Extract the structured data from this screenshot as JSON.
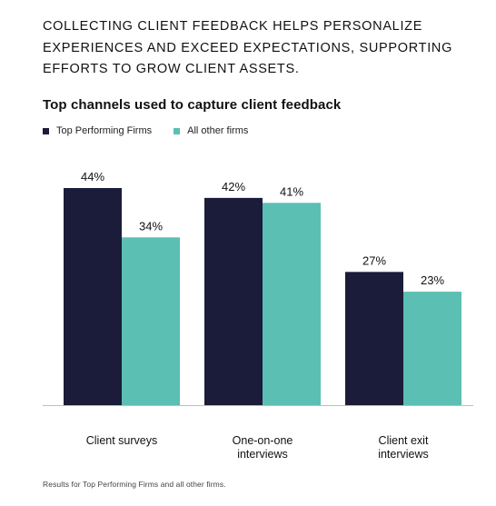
{
  "intro_text": "COLLECTING CLIENT FEEDBACK HELPS PERSONALIZE EXPERIENCES AND EXCEED EXPECTATIONS, SUPPORTING EFFORTS TO GROW CLIENT ASSETS.",
  "footnote": "Results for Top Performing Firms and all other firms.",
  "colors": {
    "top_performing": "#1b1c3a",
    "all_other": "#5bbfb3",
    "axis": "#bfbfbf"
  },
  "chart_data": {
    "type": "bar",
    "title": "Top channels used to capture client feedback",
    "categories": [
      [
        "Client surveys"
      ],
      [
        "One-on-one",
        "interviews"
      ],
      [
        "Client exit",
        "interviews"
      ]
    ],
    "series": [
      {
        "name": "Top Performing Firms",
        "values": [
          44,
          42,
          27
        ],
        "color": "#1b1c3a"
      },
      {
        "name": "All other firms",
        "values": [
          34,
          41,
          23
        ],
        "color": "#5bbfb3"
      }
    ],
    "value_suffix": "%",
    "ylim": [
      0,
      44
    ],
    "grid": false,
    "legend_position": "top-left"
  }
}
